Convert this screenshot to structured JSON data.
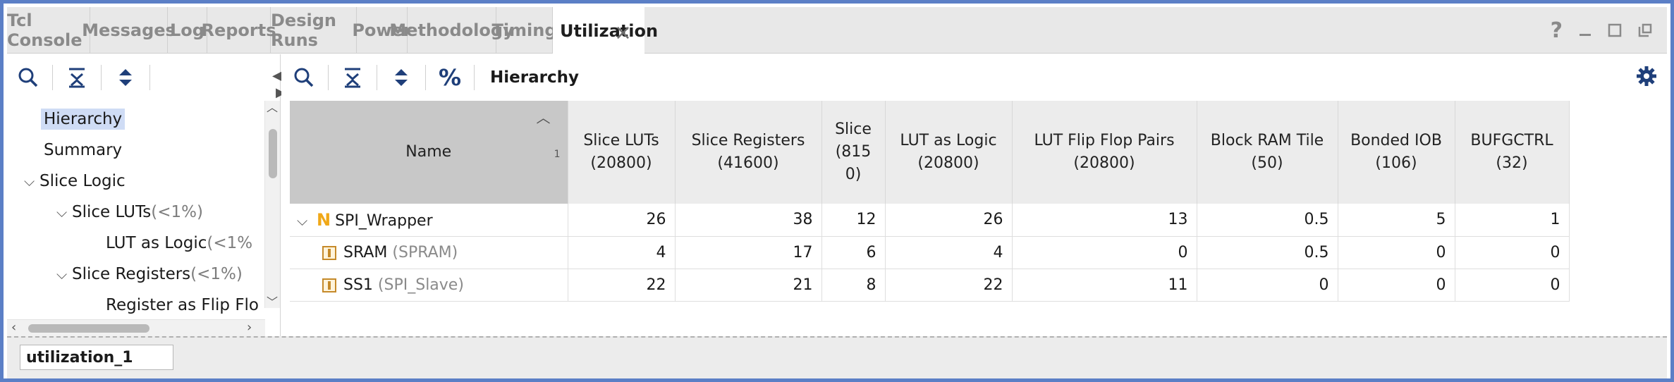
{
  "tabs": [
    {
      "label": "Tcl Console"
    },
    {
      "label": "Messages"
    },
    {
      "label": "Log"
    },
    {
      "label": "Reports"
    },
    {
      "label": "Design Runs"
    },
    {
      "label": "Power"
    },
    {
      "label": "Methodology"
    },
    {
      "label": "Timing"
    },
    {
      "label": "Utilization",
      "active": true
    }
  ],
  "window_controls": {
    "help": "?"
  },
  "left_tree": {
    "items": [
      {
        "label": "Hierarchy",
        "pct": "",
        "selected": true
      },
      {
        "label": "Summary",
        "pct": ""
      },
      {
        "label": "Slice Logic",
        "pct": ""
      },
      {
        "label": "Slice LUTs ",
        "pct": "(<1%)"
      },
      {
        "label": "LUT as Logic ",
        "pct": "(<1%"
      },
      {
        "label": "Slice Registers ",
        "pct": "(<1%)"
      },
      {
        "label": "Register as Flip Flo",
        "pct": ""
      }
    ]
  },
  "toolbar": {
    "percent": "%",
    "title": "Hierarchy"
  },
  "table": {
    "headers": [
      {
        "line1": "Name",
        "line2": ""
      },
      {
        "line1": "Slice LUTs",
        "line2": "(20800)"
      },
      {
        "line1": "Slice Registers",
        "line2": "(41600)"
      },
      {
        "line1": "Slice",
        "line2": "(815",
        "line3": "0)"
      },
      {
        "line1": "LUT as Logic",
        "line2": "(20800)"
      },
      {
        "line1": "LUT Flip Flop Pairs",
        "line2": "(20800)"
      },
      {
        "line1": "Block RAM Tile",
        "line2": "(50)"
      },
      {
        "line1": "Bonded IOB",
        "line2": "(106)"
      },
      {
        "line1": "BUFGCTRL",
        "line2": "(32)"
      }
    ],
    "sort_index": "1",
    "rows": [
      {
        "name": "SPI_Wrapper",
        "type": "",
        "values": [
          "26",
          "38",
          "12",
          "26",
          "13",
          "0.5",
          "5",
          "1"
        ]
      },
      {
        "name": "SRAM ",
        "type": "(SPRAM)",
        "values": [
          "4",
          "17",
          "6",
          "4",
          "0",
          "0.5",
          "0",
          "0"
        ]
      },
      {
        "name": "SS1 ",
        "type": "(SPI_Slave)",
        "values": [
          "22",
          "21",
          "8",
          "22",
          "11",
          "0",
          "0",
          "0"
        ]
      }
    ]
  },
  "bottom": {
    "tab_label": "utilization_1"
  },
  "colors": {
    "frame": "#5b7fc6",
    "selected": "#cfdcf5",
    "n_icon": "#f0a818"
  }
}
